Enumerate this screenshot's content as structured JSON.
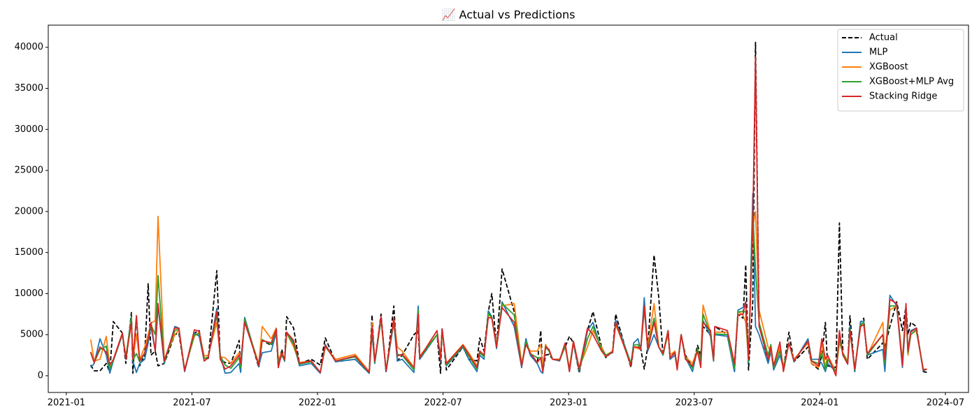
{
  "chart_data": {
    "type": "line",
    "title": "📈 Actual vs Predictions",
    "x": [
      2021.097,
      2021.111,
      2021.134,
      2021.159,
      2021.173,
      2021.187,
      2021.223,
      2021.237,
      2021.259,
      2021.265,
      2021.279,
      2021.292,
      2021.312,
      2021.326,
      2021.337,
      2021.354,
      2021.365,
      2021.39,
      2021.432,
      2021.448,
      2021.471,
      2021.51,
      2021.529,
      2021.549,
      2021.565,
      2021.599,
      2021.613,
      2021.632,
      2021.655,
      2021.688,
      2021.694,
      2021.71,
      2021.766,
      2021.78,
      2021.816,
      2021.836,
      2021.844,
      2021.858,
      2021.869,
      2021.877,
      2021.905,
      2021.928,
      2021.975,
      2022.011,
      2022.031,
      2022.072,
      2022.15,
      2022.206,
      2022.217,
      2022.228,
      2022.253,
      2022.273,
      2022.304,
      2022.318,
      2022.337,
      2022.384,
      2022.401,
      2022.407,
      2022.476,
      2022.49,
      2022.496,
      2022.513,
      2022.579,
      2022.602,
      2022.635,
      2022.646,
      2022.663,
      2022.68,
      2022.694,
      2022.713,
      2022.735,
      2022.783,
      2022.813,
      2022.83,
      2022.847,
      2022.875,
      2022.889,
      2022.897,
      2022.908,
      2022.922,
      2022.936,
      2022.964,
      2022.986,
      2023.003,
      2023.019,
      2023.042,
      2023.075,
      2023.097,
      2023.131,
      2023.148,
      2023.175,
      2023.187,
      2023.248,
      2023.259,
      2023.276,
      2023.287,
      2023.301,
      2023.315,
      2023.34,
      2023.359,
      2023.376,
      2023.396,
      2023.404,
      2023.423,
      2023.432,
      2023.448,
      2023.465,
      2023.493,
      2023.513,
      2023.526,
      2023.535,
      2023.565,
      2023.577,
      2023.582,
      2023.632,
      2023.66,
      2023.674,
      2023.694,
      2023.705,
      2023.716,
      2023.733,
      2023.744,
      2023.758,
      2023.794,
      2023.805,
      2023.816,
      2023.841,
      2023.855,
      2023.877,
      2023.897,
      2023.953,
      2023.967,
      2023.994,
      2024.008,
      2024.022,
      2024.031,
      2024.064,
      2024.078,
      2024.092,
      2024.111,
      2024.12,
      2024.139,
      2024.162,
      2024.175,
      2024.189,
      2024.251,
      2024.259,
      2024.279,
      2024.306,
      2024.329,
      2024.343,
      2024.351,
      2024.362,
      2024.384,
      2024.412,
      2024.426
    ],
    "series": [
      {
        "name": "Actual",
        "color": "#000000",
        "linestyle": "dashed",
        "values": [
          1300,
          600,
          600,
          1500,
          400,
          6600,
          5200,
          1500,
          7700,
          300,
          7300,
          1200,
          2500,
          11200,
          2500,
          3000,
          1200,
          1500,
          5000,
          5200,
          600,
          5200,
          5500,
          2000,
          2100,
          12800,
          2000,
          1600,
          1500,
          4300,
          500,
          7000,
          1000,
          4300,
          3700,
          5400,
          1000,
          3200,
          1700,
          7200,
          5800,
          1500,
          2000,
          1300,
          4600,
          1700,
          2000,
          300,
          7400,
          1500,
          7500,
          400,
          8500,
          1800,
          2500,
          5000,
          5500,
          2000,
          5000,
          300,
          5800,
          700,
          3500,
          2000,
          1800,
          4600,
          3000,
          7800,
          10000,
          3500,
          13000,
          7800,
          1000,
          4500,
          2500,
          1500,
          5500,
          500,
          2500,
          2600,
          2000,
          2000,
          3500,
          4800,
          4000,
          300,
          5500,
          7800,
          3500,
          2200,
          3000,
          7500,
          1000,
          3500,
          3500,
          3300,
          800,
          3500,
          14700,
          9500,
          2500,
          5500,
          2000,
          3000,
          1000,
          5000,
          2500,
          1000,
          3700,
          2500,
          6000,
          5000,
          1800,
          6000,
          5000,
          500,
          7500,
          7000,
          13500,
          700,
          9000,
          40600,
          6500,
          1500,
          3000,
          1000,
          3500,
          800,
          5300,
          1700,
          3500,
          1500,
          800,
          2500,
          6500,
          1200,
          1000,
          18600,
          2500,
          1500,
          7300,
          500,
          6500,
          7000,
          2000,
          4000,
          3500,
          6000,
          9000,
          5500,
          8500,
          5000,
          6500,
          6000,
          500,
          400
        ]
      },
      {
        "name": "MLP",
        "color": "#1f77b4",
        "linestyle": "solid",
        "values": [
          1000,
          1500,
          4500,
          2500,
          300,
          1800,
          5000,
          2200,
          7200,
          1800,
          400,
          1500,
          2000,
          4000,
          6000,
          3000,
          8500,
          1500,
          6000,
          5800,
          500,
          5200,
          4800,
          1800,
          2200,
          8200,
          2500,
          300,
          400,
          1500,
          400,
          7100,
          1200,
          2800,
          3000,
          5300,
          1500,
          2500,
          1800,
          5300,
          4000,
          1200,
          1500,
          300,
          3800,
          1700,
          2000,
          300,
          5200,
          1500,
          7000,
          500,
          6500,
          1800,
          2000,
          400,
          8500,
          2000,
          5000,
          2000,
          5700,
          1200,
          3500,
          2000,
          500,
          2500,
          2000,
          7900,
          7200,
          3300,
          9000,
          6000,
          1000,
          4500,
          2500,
          1500,
          500,
          300,
          3500,
          3000,
          2000,
          1800,
          3800,
          500,
          4000,
          500,
          5500,
          6500,
          3000,
          2500,
          2800,
          6800,
          1500,
          4000,
          4500,
          3200,
          9500,
          3000,
          5000,
          3500,
          2500,
          5500,
          2000,
          2500,
          1000,
          5000,
          2200,
          500,
          3300,
          1800,
          6700,
          4800,
          1800,
          5000,
          4800,
          500,
          8000,
          8300,
          9000,
          1500,
          22200,
          6000,
          5000,
          1500,
          3000,
          700,
          2500,
          1000,
          4000,
          1700,
          4500,
          2000,
          2000,
          1500,
          500,
          1500,
          500,
          5000,
          2500,
          1500,
          6000,
          500,
          6600,
          6600,
          2500,
          3200,
          500,
          9800,
          8500,
          1000,
          7500,
          3000,
          5500,
          5800,
          600,
          800
        ]
      },
      {
        "name": "XGBoost",
        "color": "#ff7f0e",
        "linestyle": "solid",
        "values": [
          4400,
          1800,
          2000,
          4800,
          1200,
          2000,
          5200,
          2300,
          7000,
          2000,
          5000,
          2000,
          3500,
          5000,
          6400,
          6700,
          19400,
          2000,
          5000,
          5600,
          800,
          4800,
          5300,
          2400,
          2500,
          6500,
          2300,
          2200,
          1500,
          2800,
          1500,
          6800,
          1500,
          6000,
          4500,
          5800,
          2000,
          2800,
          2000,
          5200,
          3500,
          1600,
          1800,
          400,
          3500,
          2000,
          2600,
          500,
          6500,
          1800,
          6800,
          700,
          7000,
          3500,
          3000,
          1000,
          7500,
          2400,
          5000,
          2500,
          5500,
          1500,
          3800,
          2800,
          1200,
          3000,
          2500,
          7500,
          7000,
          3800,
          8500,
          8800,
          1500,
          4000,
          3000,
          3000,
          3800,
          800,
          3800,
          3000,
          2000,
          2000,
          3500,
          1000,
          4200,
          1000,
          3500,
          5500,
          3500,
          2500,
          3000,
          6200,
          1500,
          3500,
          3300,
          3200,
          8000,
          3500,
          8800,
          3500,
          2800,
          5000,
          2500,
          3000,
          800,
          5000,
          2300,
          1500,
          3200,
          2000,
          8600,
          5200,
          2000,
          5300,
          5300,
          1200,
          7800,
          7400,
          6500,
          2000,
          18000,
          20000,
          8000,
          3500,
          3000,
          1000,
          3500,
          1000,
          4000,
          2000,
          4000,
          1500,
          1000,
          4000,
          1000,
          2500,
          500,
          4000,
          2800,
          1800,
          5500,
          1000,
          6000,
          6500,
          2500,
          6500,
          2500,
          8000,
          8500,
          2000,
          8000,
          2500,
          5000,
          5500,
          800,
          800
        ]
      },
      {
        "name": "XGBoost+MLP Avg",
        "color": "#2ca02c",
        "linestyle": "solid",
        "values": [
          2800,
          1600,
          3200,
          3600,
          800,
          1900,
          5100,
          2200,
          7100,
          1900,
          2700,
          1700,
          2700,
          4500,
          6200,
          5000,
          12200,
          1700,
          5500,
          5700,
          700,
          5000,
          5100,
          2100,
          2300,
          7400,
          2400,
          1300,
          900,
          2200,
          1000,
          6900,
          1300,
          4400,
          3800,
          5500,
          1700,
          2600,
          1900,
          5200,
          3800,
          1400,
          1700,
          400,
          3600,
          1800,
          2300,
          400,
          5800,
          1600,
          6900,
          600,
          6700,
          2600,
          2500,
          700,
          8000,
          2200,
          5000,
          2200,
          5600,
          1300,
          3600,
          2400,
          800,
          2800,
          2300,
          7600,
          7100,
          3500,
          8800,
          7400,
          1200,
          4200,
          2700,
          2200,
          2200,
          500,
          3600,
          3000,
          2000,
          1900,
          3600,
          700,
          4100,
          700,
          4500,
          6000,
          3200,
          2500,
          2900,
          6500,
          1500,
          3700,
          3800,
          3200,
          8500,
          3200,
          7000,
          3500,
          2600,
          5200,
          2200,
          2800,
          900,
          5000,
          2200,
          900,
          3300,
          1900,
          7500,
          5000,
          1900,
          5100,
          5000,
          900,
          7800,
          7800,
          7800,
          1700,
          20000,
          13000,
          6500,
          2500,
          3800,
          1000,
          3000,
          1000,
          4000,
          1800,
          4200,
          1800,
          1500,
          2800,
          700,
          2000,
          500,
          4500,
          2700,
          1600,
          5700,
          700,
          6200,
          6500,
          2500,
          5000,
          1500,
          8500,
          8500,
          1500,
          8000,
          2800,
          5000,
          5600,
          700,
          800
        ]
      },
      {
        "name": "Stacking Ridge",
        "color": "#d62728",
        "linestyle": "solid",
        "values": [
          2900,
          1600,
          3500,
          2900,
          1400,
          1900,
          5200,
          2000,
          6500,
          2000,
          7300,
          1800,
          2800,
          4500,
          6500,
          3000,
          8800,
          1800,
          5800,
          5800,
          600,
          5600,
          5400,
          1800,
          2200,
          7800,
          2000,
          800,
          1200,
          2500,
          1500,
          6500,
          1300,
          4300,
          4000,
          5700,
          1000,
          2800,
          2000,
          5300,
          4300,
          1500,
          1800,
          400,
          3700,
          1800,
          2400,
          400,
          6000,
          1800,
          7200,
          600,
          7000,
          2400,
          2600,
          1000,
          7500,
          2200,
          5500,
          2000,
          5700,
          1500,
          3700,
          2600,
          1000,
          3000,
          2500,
          7100,
          7000,
          3500,
          8300,
          6500,
          1200,
          3800,
          2800,
          1600,
          2200,
          500,
          3500,
          3200,
          2000,
          1900,
          4000,
          500,
          4200,
          800,
          5800,
          5000,
          3000,
          2300,
          2900,
          6500,
          1200,
          3500,
          3500,
          3200,
          8500,
          3200,
          6500,
          3500,
          2700,
          5500,
          2200,
          2800,
          700,
          5000,
          2000,
          1200,
          3000,
          1000,
          6500,
          5500,
          2000,
          6000,
          5500,
          1500,
          7400,
          7500,
          9000,
          2000,
          18500,
          38800,
          6000,
          2000,
          3500,
          1200,
          4100,
          500,
          4000,
          1800,
          4200,
          1800,
          1200,
          4500,
          2000,
          2500,
          0,
          5500,
          2500,
          1400,
          5500,
          800,
          6000,
          6200,
          2700,
          5000,
          2000,
          9300,
          8800,
          1200,
          8800,
          3000,
          5300,
          5800,
          700,
          800
        ]
      }
    ],
    "xlim": [
      2020.928,
      2024.592
    ],
    "xticks": [
      {
        "value": 2021.0,
        "label": "2021-01"
      },
      {
        "value": 2021.5,
        "label": "2021-07"
      },
      {
        "value": 2022.0,
        "label": "2022-01"
      },
      {
        "value": 2022.5,
        "label": "2022-07"
      },
      {
        "value": 2023.0,
        "label": "2023-01"
      },
      {
        "value": 2023.5,
        "label": "2023-07"
      },
      {
        "value": 2024.0,
        "label": "2024-01"
      },
      {
        "value": 2024.5,
        "label": "2024-07"
      }
    ],
    "ylim": [
      -2040,
      42700
    ],
    "yticks": [
      0,
      5000,
      10000,
      15000,
      20000,
      25000,
      30000,
      35000,
      40000
    ],
    "grid": false,
    "legend": "upper right"
  }
}
